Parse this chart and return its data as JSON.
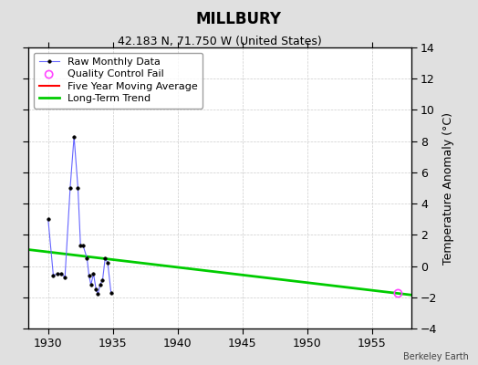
{
  "title": "MILLBURY",
  "subtitle": "42.183 N, 71.750 W (United States)",
  "credit": "Berkeley Earth",
  "ylabel_right": "Temperature Anomaly (°C)",
  "xlim": [
    1928.5,
    1958.0
  ],
  "ylim": [
    -4,
    14
  ],
  "yticks": [
    -4,
    -2,
    0,
    2,
    4,
    6,
    8,
    10,
    12,
    14
  ],
  "xticks": [
    1930,
    1935,
    1940,
    1945,
    1950,
    1955
  ],
  "bg_color": "#e0e0e0",
  "plot_bg_color": "#ffffff",
  "raw_x": [
    1930.0,
    1930.4,
    1930.7,
    1931.0,
    1931.3,
    1931.7,
    1932.0,
    1932.3,
    1932.5,
    1932.7,
    1933.0,
    1933.15,
    1933.3,
    1933.5,
    1933.7,
    1933.85,
    1934.0,
    1934.2,
    1934.4,
    1934.6,
    1934.85
  ],
  "raw_y": [
    3.0,
    -0.6,
    -0.5,
    -0.5,
    -0.7,
    5.0,
    8.3,
    5.0,
    1.3,
    1.3,
    0.5,
    -0.6,
    -1.2,
    -0.5,
    -1.5,
    -1.8,
    -1.2,
    -0.9,
    0.5,
    0.2,
    -1.7
  ],
  "qc_fail_x": [
    1957.0
  ],
  "qc_fail_y": [
    -1.75
  ],
  "trend_x": [
    1928.5,
    1958.0
  ],
  "trend_y": [
    1.05,
    -1.85
  ],
  "grid_color": "#cccccc",
  "grid_style": "--",
  "raw_line_color": "#6666ff",
  "raw_marker_color": "#000000",
  "trend_color": "#00cc00",
  "ma_color": "#ff0000",
  "qc_color": "#ff44ff",
  "title_fontsize": 12,
  "subtitle_fontsize": 9,
  "axis_fontsize": 9,
  "legend_fontsize": 8
}
